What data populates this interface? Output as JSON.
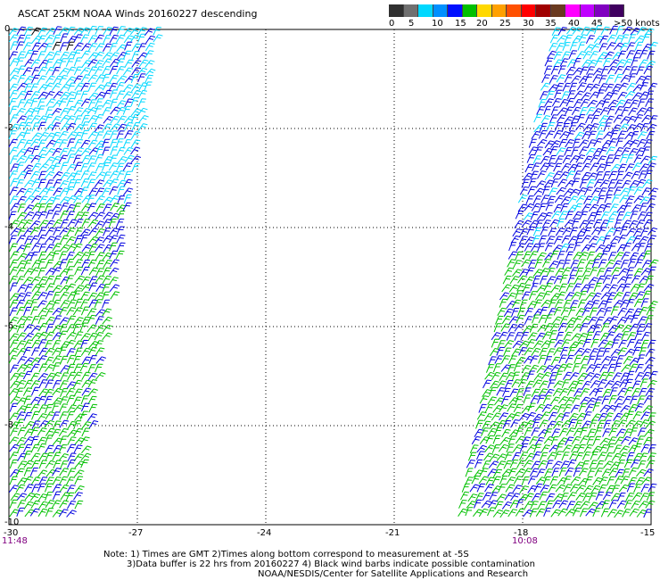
{
  "title": "ASCAT 25KM NOAA Winds 20160227 descending",
  "speed_scale": {
    "labels": [
      "0",
      "5",
      "10",
      "15",
      "20",
      "25",
      "30",
      "35",
      "40",
      "45",
      ">50 knots"
    ],
    "colors": [
      "#303030",
      "#707070",
      "#00d8ff",
      "#0090ff",
      "#0010ff",
      "#00c000",
      "#ffd800",
      "#ffa000",
      "#ff5000",
      "#ff0000",
      "#a00000",
      "#6a3a20",
      "#ff00ff",
      "#c000ff",
      "#8000c0",
      "#400060"
    ]
  },
  "axes": {
    "x_ticks": [
      "-30",
      "-27",
      "-24",
      "-21",
      "-18",
      "-15"
    ],
    "y_ticks": [
      "0",
      "-2",
      "-4",
      "-6",
      "-8",
      "-10"
    ],
    "x_range": [
      -30,
      -15
    ],
    "y_range": [
      -10,
      0
    ]
  },
  "pass_times": {
    "left": "11:48",
    "right": "10:08"
  },
  "notes": [
    "Note: 1) Times are GMT 2)Times along bottom correspond to measurement at -5S",
    "3)Data buffer is 22 hrs from 20160227 4) Black wind barbs indicate possible contamination",
    "NOAA/NESDIS/Center for Satellite Applications and Research"
  ],
  "barb_colors": {
    "light": "#00d8ff",
    "medium": "#0000e0",
    "strong": "#00c000",
    "contaminated": "#000000"
  }
}
